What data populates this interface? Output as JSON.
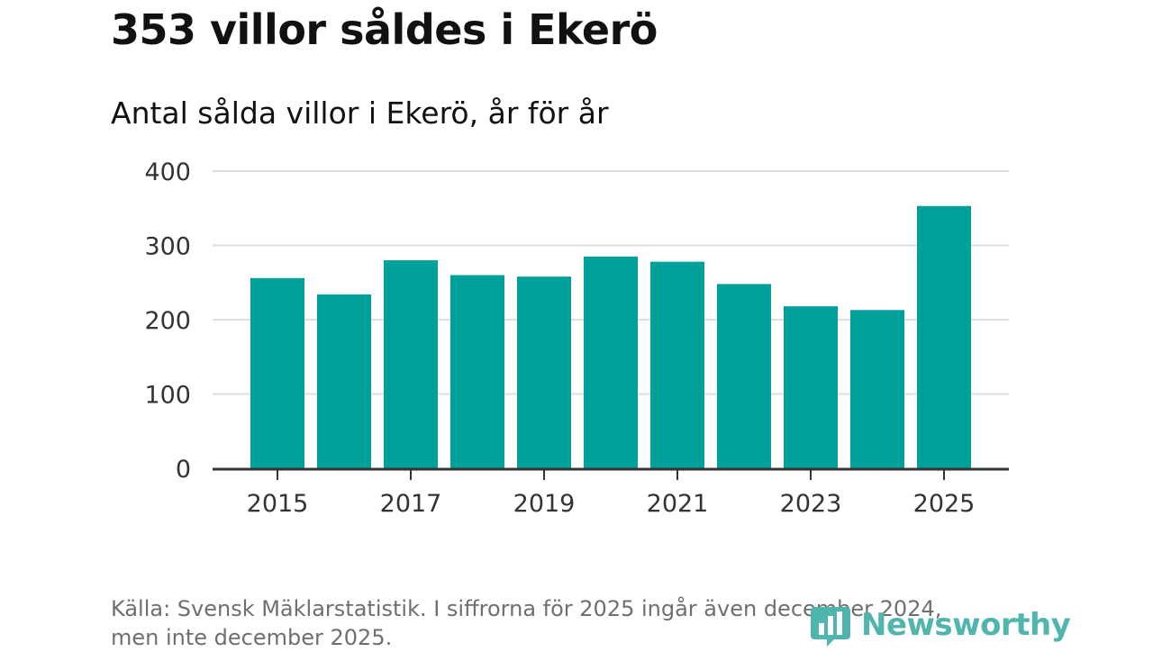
{
  "title": "353 villor såldes i Ekerö",
  "subtitle": "Antal sålda villor i Ekerö, år för år",
  "source_lines": [
    "Källa: Svensk Mäklarstatistik. I siffrorna för 2025 ingår även december 2024,",
    "men inte december 2025."
  ],
  "logo": {
    "text": "Newsworthy",
    "icon": "bar-chart-logo-icon",
    "color": "#4fb5ad"
  },
  "chart_data": {
    "type": "bar",
    "categories": [
      "2015",
      "2016",
      "2017",
      "2018",
      "2019",
      "2020",
      "2021",
      "2022",
      "2023",
      "2024",
      "2025"
    ],
    "values": [
      256,
      234,
      280,
      260,
      258,
      285,
      278,
      248,
      218,
      213,
      353
    ],
    "x_tick_labels": [
      "2015",
      "2017",
      "2019",
      "2021",
      "2023",
      "2025"
    ],
    "y_ticks": [
      0,
      100,
      200,
      300,
      400
    ],
    "ylim": [
      0,
      400
    ],
    "grid": true,
    "bar_color": "#00a19a",
    "axis_color": "#333333",
    "grid_color": "#dddddd"
  }
}
